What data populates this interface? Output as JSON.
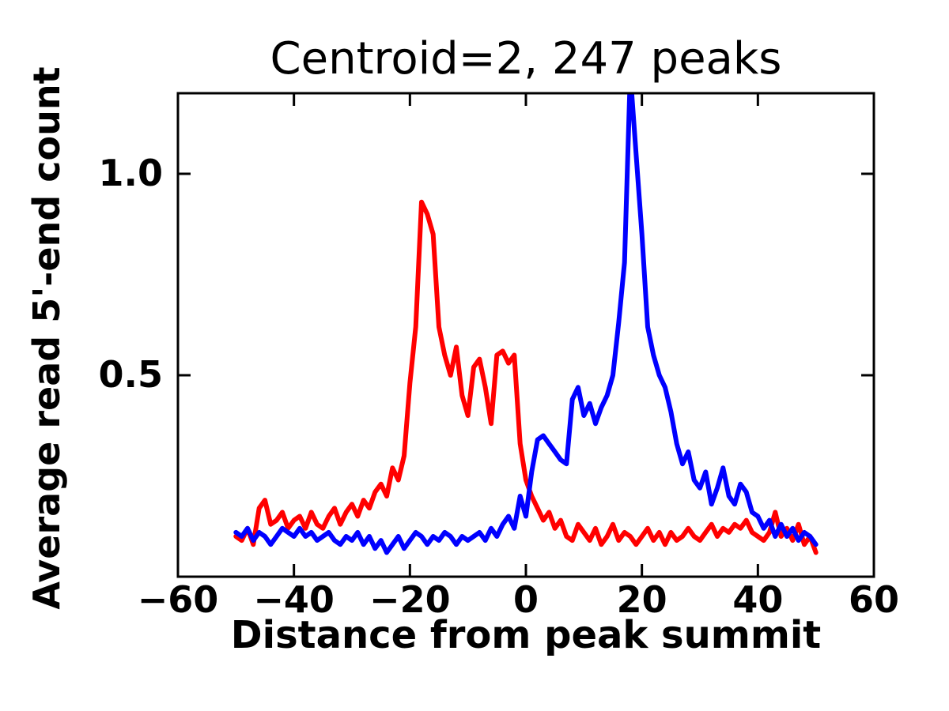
{
  "chart_data": {
    "type": "line",
    "title": "Centroid=2, 247 peaks",
    "xlabel": "Distance from peak summit",
    "ylabel": "Average read 5'-end count",
    "xlim": [
      -60,
      60
    ],
    "ylim": [
      0,
      1.2
    ],
    "xticks": [
      -60,
      -40,
      -20,
      0,
      20,
      40,
      60
    ],
    "xtick_labels": [
      "−60",
      "−40",
      "−20",
      "0",
      "20",
      "40",
      "60"
    ],
    "yticks": [
      0.5,
      1.0
    ],
    "ytick_labels": [
      "0.5",
      "1.0"
    ],
    "grid": false,
    "legend": null,
    "frame_color": "#000000",
    "line_width": 6,
    "x": [
      -50,
      -49,
      -48,
      -47,
      -46,
      -45,
      -44,
      -43,
      -42,
      -41,
      -40,
      -39,
      -38,
      -37,
      -36,
      -35,
      -34,
      -33,
      -32,
      -31,
      -30,
      -29,
      -28,
      -27,
      -26,
      -25,
      -24,
      -23,
      -22,
      -21,
      -20,
      -19,
      -18,
      -17,
      -16,
      -15,
      -14,
      -13,
      -12,
      -11,
      -10,
      -9,
      -8,
      -7,
      -6,
      -5,
      -4,
      -3,
      -2,
      -1,
      0,
      1,
      2,
      3,
      4,
      5,
      6,
      7,
      8,
      9,
      10,
      11,
      12,
      13,
      14,
      15,
      16,
      17,
      18,
      19,
      20,
      21,
      22,
      23,
      24,
      25,
      26,
      27,
      28,
      29,
      30,
      31,
      32,
      33,
      34,
      35,
      36,
      37,
      38,
      39,
      40,
      41,
      42,
      43,
      44,
      45,
      46,
      47,
      48,
      49,
      50
    ],
    "series": [
      {
        "name": "red",
        "color": "#ff0000",
        "values": [
          0.1,
          0.09,
          0.12,
          0.08,
          0.17,
          0.19,
          0.13,
          0.14,
          0.16,
          0.12,
          0.14,
          0.15,
          0.12,
          0.16,
          0.13,
          0.12,
          0.15,
          0.17,
          0.13,
          0.16,
          0.18,
          0.15,
          0.19,
          0.17,
          0.21,
          0.23,
          0.2,
          0.27,
          0.24,
          0.3,
          0.48,
          0.62,
          0.93,
          0.9,
          0.85,
          0.62,
          0.55,
          0.5,
          0.57,
          0.45,
          0.4,
          0.52,
          0.54,
          0.47,
          0.38,
          0.55,
          0.56,
          0.53,
          0.55,
          0.33,
          0.24,
          0.2,
          0.17,
          0.14,
          0.16,
          0.12,
          0.14,
          0.1,
          0.09,
          0.13,
          0.11,
          0.09,
          0.12,
          0.08,
          0.1,
          0.13,
          0.09,
          0.11,
          0.1,
          0.08,
          0.1,
          0.12,
          0.09,
          0.11,
          0.08,
          0.11,
          0.09,
          0.1,
          0.12,
          0.1,
          0.09,
          0.11,
          0.13,
          0.1,
          0.12,
          0.11,
          0.13,
          0.12,
          0.14,
          0.11,
          0.1,
          0.09,
          0.11,
          0.16,
          0.1,
          0.12,
          0.09,
          0.13,
          0.08,
          0.1,
          0.06
        ]
      },
      {
        "name": "blue",
        "color": "#0000ff",
        "values": [
          0.11,
          0.1,
          0.12,
          0.09,
          0.11,
          0.1,
          0.08,
          0.1,
          0.12,
          0.11,
          0.1,
          0.12,
          0.1,
          0.11,
          0.09,
          0.1,
          0.11,
          0.09,
          0.08,
          0.1,
          0.09,
          0.11,
          0.08,
          0.1,
          0.07,
          0.09,
          0.06,
          0.08,
          0.1,
          0.07,
          0.09,
          0.11,
          0.1,
          0.08,
          0.1,
          0.09,
          0.11,
          0.1,
          0.08,
          0.1,
          0.09,
          0.1,
          0.11,
          0.09,
          0.12,
          0.1,
          0.13,
          0.15,
          0.12,
          0.2,
          0.15,
          0.26,
          0.34,
          0.35,
          0.33,
          0.31,
          0.29,
          0.28,
          0.44,
          0.47,
          0.4,
          0.43,
          0.38,
          0.42,
          0.45,
          0.5,
          0.63,
          0.78,
          1.25,
          1.05,
          0.85,
          0.62,
          0.55,
          0.5,
          0.47,
          0.41,
          0.33,
          0.28,
          0.31,
          0.24,
          0.22,
          0.26,
          0.18,
          0.22,
          0.27,
          0.2,
          0.18,
          0.23,
          0.21,
          0.16,
          0.15,
          0.12,
          0.14,
          0.1,
          0.13,
          0.1,
          0.12,
          0.09,
          0.11,
          0.1,
          0.08
        ]
      }
    ]
  }
}
